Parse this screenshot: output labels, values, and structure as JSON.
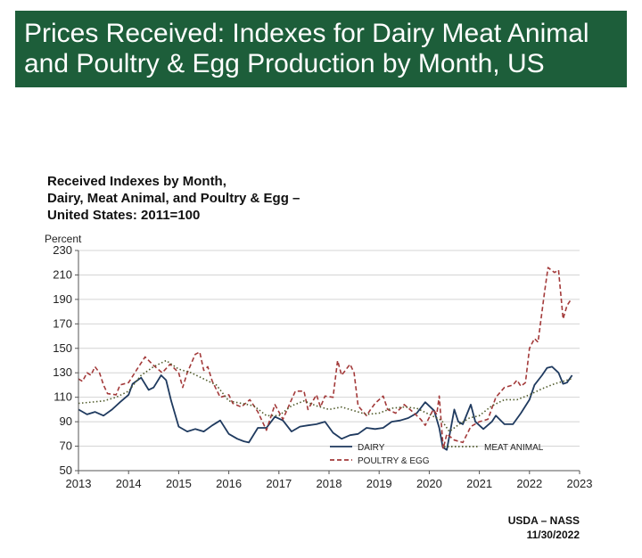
{
  "header": {
    "title_line1": "Prices Received: Indexes for Dairy Meat Animal",
    "title_line2": "and Poultry & Egg Production by Month, US"
  },
  "chart_data": {
    "type": "line",
    "title_lines": [
      "Received Indexes by Month,",
      "Dairy, Meat Animal, and Poultry & Egg –",
      "United States: 2011=100"
    ],
    "ylabel": "Percent",
    "xlabel": "",
    "ylim": [
      50,
      230
    ],
    "yticks": [
      50,
      70,
      90,
      110,
      130,
      150,
      170,
      190,
      210,
      230
    ],
    "xlim": [
      2013,
      2023
    ],
    "xticks": [
      "2013",
      "2014",
      "2015",
      "2016",
      "2017",
      "2018",
      "2019",
      "2020",
      "2021",
      "2022",
      "2023"
    ],
    "gridlines": true,
    "series": [
      {
        "name": "DAIRY",
        "color": "#1f3a5f",
        "dash": "solid",
        "points": [
          [
            2013.0,
            100
          ],
          [
            2013.17,
            96
          ],
          [
            2013.33,
            98
          ],
          [
            2013.5,
            95
          ],
          [
            2013.67,
            100
          ],
          [
            2013.83,
            106
          ],
          [
            2014.0,
            112
          ],
          [
            2014.08,
            121
          ],
          [
            2014.25,
            126
          ],
          [
            2014.4,
            116
          ],
          [
            2014.5,
            118
          ],
          [
            2014.65,
            128
          ],
          [
            2014.75,
            124
          ],
          [
            2014.85,
            107
          ],
          [
            2015.0,
            86
          ],
          [
            2015.17,
            82
          ],
          [
            2015.33,
            84
          ],
          [
            2015.5,
            82
          ],
          [
            2015.67,
            87
          ],
          [
            2015.83,
            91
          ],
          [
            2016.0,
            80
          ],
          [
            2016.17,
            76
          ],
          [
            2016.3,
            74
          ],
          [
            2016.4,
            73
          ],
          [
            2016.58,
            85
          ],
          [
            2016.75,
            85
          ],
          [
            2016.92,
            94
          ],
          [
            2017.08,
            91
          ],
          [
            2017.25,
            82
          ],
          [
            2017.42,
            86
          ],
          [
            2017.58,
            87
          ],
          [
            2017.75,
            88
          ],
          [
            2017.92,
            90
          ],
          [
            2018.08,
            81
          ],
          [
            2018.25,
            76
          ],
          [
            2018.42,
            79
          ],
          [
            2018.58,
            80
          ],
          [
            2018.75,
            85
          ],
          [
            2018.92,
            84
          ],
          [
            2019.08,
            85
          ],
          [
            2019.25,
            90
          ],
          [
            2019.42,
            91
          ],
          [
            2019.58,
            93
          ],
          [
            2019.75,
            97
          ],
          [
            2019.92,
            106
          ],
          [
            2020.1,
            99
          ],
          [
            2020.2,
            85
          ],
          [
            2020.27,
            69
          ],
          [
            2020.35,
            67
          ],
          [
            2020.5,
            100
          ],
          [
            2020.58,
            90
          ],
          [
            2020.67,
            88
          ],
          [
            2020.83,
            104
          ],
          [
            2020.92,
            90
          ],
          [
            2021.08,
            84
          ],
          [
            2021.25,
            90
          ],
          [
            2021.33,
            95
          ],
          [
            2021.5,
            88
          ],
          [
            2021.67,
            88
          ],
          [
            2021.83,
            97
          ],
          [
            2022.0,
            108
          ],
          [
            2022.1,
            120
          ],
          [
            2022.25,
            128
          ],
          [
            2022.35,
            134
          ],
          [
            2022.45,
            135
          ],
          [
            2022.58,
            130
          ],
          [
            2022.67,
            121
          ],
          [
            2022.75,
            122
          ],
          [
            2022.85,
            128
          ]
        ]
      },
      {
        "name": "POULTRY & EGG",
        "color": "#a33a3a",
        "dash": "dashed",
        "points": [
          [
            2013.0,
            125
          ],
          [
            2013.08,
            123
          ],
          [
            2013.17,
            130
          ],
          [
            2013.25,
            128
          ],
          [
            2013.33,
            135
          ],
          [
            2013.42,
            130
          ],
          [
            2013.5,
            120
          ],
          [
            2013.58,
            113
          ],
          [
            2013.75,
            112
          ],
          [
            2013.83,
            120
          ],
          [
            2014.0,
            122
          ],
          [
            2014.17,
            133
          ],
          [
            2014.33,
            143
          ],
          [
            2014.5,
            136
          ],
          [
            2014.67,
            130
          ],
          [
            2014.83,
            137
          ],
          [
            2015.0,
            130
          ],
          [
            2015.08,
            118
          ],
          [
            2015.17,
            130
          ],
          [
            2015.33,
            145
          ],
          [
            2015.42,
            147
          ],
          [
            2015.5,
            132
          ],
          [
            2015.58,
            135
          ],
          [
            2015.67,
            123
          ],
          [
            2015.83,
            110
          ],
          [
            2016.0,
            112
          ],
          [
            2016.08,
            105
          ],
          [
            2016.25,
            102
          ],
          [
            2016.42,
            108
          ],
          [
            2016.58,
            98
          ],
          [
            2016.75,
            83
          ],
          [
            2016.92,
            104
          ],
          [
            2017.08,
            92
          ],
          [
            2017.25,
            108
          ],
          [
            2017.33,
            115
          ],
          [
            2017.5,
            115
          ],
          [
            2017.58,
            100
          ],
          [
            2017.75,
            112
          ],
          [
            2017.83,
            102
          ],
          [
            2017.92,
            111
          ],
          [
            2018.08,
            110
          ],
          [
            2018.17,
            140
          ],
          [
            2018.25,
            128
          ],
          [
            2018.42,
            137
          ],
          [
            2018.5,
            130
          ],
          [
            2018.58,
            103
          ],
          [
            2018.75,
            95
          ],
          [
            2018.83,
            100
          ],
          [
            2018.92,
            105
          ],
          [
            2019.08,
            111
          ],
          [
            2019.17,
            100
          ],
          [
            2019.33,
            97
          ],
          [
            2019.5,
            104
          ],
          [
            2019.67,
            98
          ],
          [
            2019.83,
            92
          ],
          [
            2019.92,
            87
          ],
          [
            2020.08,
            100
          ],
          [
            2020.15,
            96
          ],
          [
            2020.2,
            111
          ],
          [
            2020.28,
            68
          ],
          [
            2020.35,
            80
          ],
          [
            2020.5,
            75
          ],
          [
            2020.67,
            73
          ],
          [
            2020.83,
            86
          ],
          [
            2021.0,
            90
          ],
          [
            2021.17,
            92
          ],
          [
            2021.33,
            110
          ],
          [
            2021.5,
            118
          ],
          [
            2021.67,
            120
          ],
          [
            2021.75,
            124
          ],
          [
            2021.83,
            119
          ],
          [
            2021.92,
            122
          ],
          [
            2022.0,
            150
          ],
          [
            2022.1,
            158
          ],
          [
            2022.17,
            155
          ],
          [
            2022.3,
            196
          ],
          [
            2022.37,
            216
          ],
          [
            2022.5,
            212
          ],
          [
            2022.58,
            214
          ],
          [
            2022.67,
            174
          ],
          [
            2022.75,
            185
          ],
          [
            2022.83,
            190
          ]
        ]
      },
      {
        "name": "MEAT ANIMAL",
        "color": "#4f5a2a",
        "dash": "dotted",
        "points": [
          [
            2013.0,
            105
          ],
          [
            2013.25,
            106
          ],
          [
            2013.5,
            107
          ],
          [
            2013.75,
            110
          ],
          [
            2014.0,
            115
          ],
          [
            2014.25,
            128
          ],
          [
            2014.5,
            135
          ],
          [
            2014.75,
            140
          ],
          [
            2015.0,
            133
          ],
          [
            2015.25,
            130
          ],
          [
            2015.5,
            125
          ],
          [
            2015.75,
            120
          ],
          [
            2016.0,
            107
          ],
          [
            2016.25,
            105
          ],
          [
            2016.5,
            103
          ],
          [
            2016.75,
            95
          ],
          [
            2017.0,
            95
          ],
          [
            2017.25,
            103
          ],
          [
            2017.5,
            107
          ],
          [
            2017.75,
            103
          ],
          [
            2018.0,
            100
          ],
          [
            2018.25,
            102
          ],
          [
            2018.5,
            99
          ],
          [
            2018.75,
            96
          ],
          [
            2019.0,
            97
          ],
          [
            2019.25,
            101
          ],
          [
            2019.5,
            102
          ],
          [
            2019.75,
            101
          ],
          [
            2020.0,
            96
          ],
          [
            2020.25,
            91
          ],
          [
            2020.4,
            82
          ],
          [
            2020.6,
            88
          ],
          [
            2020.8,
            93
          ],
          [
            2021.0,
            95
          ],
          [
            2021.25,
            103
          ],
          [
            2021.5,
            108
          ],
          [
            2021.75,
            108
          ],
          [
            2022.0,
            112
          ],
          [
            2022.25,
            117
          ],
          [
            2022.5,
            121
          ],
          [
            2022.67,
            123
          ],
          [
            2022.83,
            125
          ]
        ]
      }
    ],
    "legend": {
      "placement": "bottom",
      "entries": [
        "DAIRY",
        "POULTRY & EGG",
        "MEAT ANIMAL"
      ]
    }
  },
  "footer": {
    "source": "USDA – NASS",
    "date": "11/30/2022"
  }
}
